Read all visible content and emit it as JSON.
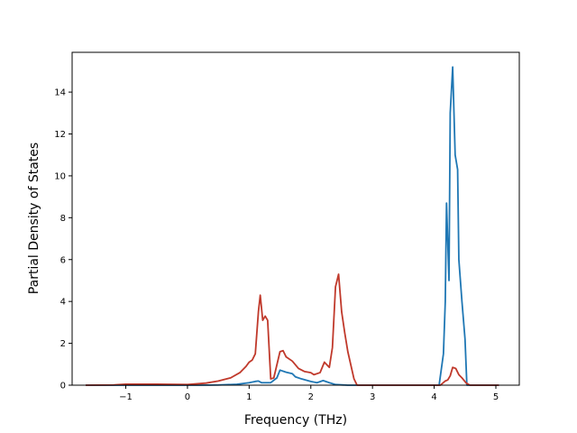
{
  "chart_data": {
    "type": "line",
    "title": "",
    "xlabel": "Frequency (THz)",
    "ylabel": "Partial Density of States",
    "xlim": [
      -1.87,
      5.38
    ],
    "ylim": [
      0,
      15.9
    ],
    "xticks": [
      -1,
      0,
      1,
      2,
      3,
      4,
      5
    ],
    "yticks": [
      0,
      2,
      4,
      6,
      8,
      10,
      12,
      14
    ],
    "grid": false,
    "legend": "none",
    "series": [
      {
        "color": "#1f77b4",
        "points": [
          [
            -1.65,
            0
          ],
          [
            0.2,
            0
          ],
          [
            0.5,
            0.01
          ],
          [
            0.8,
            0.04
          ],
          [
            1.0,
            0.12
          ],
          [
            1.1,
            0.18
          ],
          [
            1.15,
            0.2
          ],
          [
            1.2,
            0.12
          ],
          [
            1.35,
            0.12
          ],
          [
            1.45,
            0.35
          ],
          [
            1.5,
            0.72
          ],
          [
            1.6,
            0.62
          ],
          [
            1.7,
            0.55
          ],
          [
            1.75,
            0.4
          ],
          [
            1.85,
            0.3
          ],
          [
            2.0,
            0.18
          ],
          [
            2.1,
            0.12
          ],
          [
            2.2,
            0.22
          ],
          [
            2.3,
            0.12
          ],
          [
            2.4,
            0.03
          ],
          [
            2.6,
            0.0
          ],
          [
            4.08,
            0.0
          ],
          [
            4.15,
            1.5
          ],
          [
            4.18,
            4.0
          ],
          [
            4.2,
            8.7
          ],
          [
            4.24,
            5.0
          ],
          [
            4.26,
            13.0
          ],
          [
            4.3,
            15.2
          ],
          [
            4.34,
            11.0
          ],
          [
            4.38,
            10.3
          ],
          [
            4.4,
            6.0
          ],
          [
            4.45,
            4.0
          ],
          [
            4.5,
            2.2
          ],
          [
            4.53,
            0.0
          ],
          [
            5.05,
            0.0
          ]
        ]
      },
      {
        "color": "#c0392b",
        "points": [
          [
            -1.65,
            0.0
          ],
          [
            -1.2,
            0.01
          ],
          [
            -1.0,
            0.05
          ],
          [
            -0.5,
            0.05
          ],
          [
            0.0,
            0.03
          ],
          [
            0.3,
            0.1
          ],
          [
            0.5,
            0.2
          ],
          [
            0.7,
            0.35
          ],
          [
            0.85,
            0.6
          ],
          [
            0.95,
            0.9
          ],
          [
            1.0,
            1.1
          ],
          [
            1.05,
            1.2
          ],
          [
            1.1,
            1.5
          ],
          [
            1.15,
            3.5
          ],
          [
            1.18,
            4.3
          ],
          [
            1.22,
            3.1
          ],
          [
            1.26,
            3.3
          ],
          [
            1.3,
            3.1
          ],
          [
            1.35,
            0.3
          ],
          [
            1.4,
            0.35
          ],
          [
            1.5,
            1.6
          ],
          [
            1.55,
            1.65
          ],
          [
            1.6,
            1.35
          ],
          [
            1.7,
            1.15
          ],
          [
            1.8,
            0.8
          ],
          [
            1.9,
            0.65
          ],
          [
            2.0,
            0.6
          ],
          [
            2.05,
            0.5
          ],
          [
            2.15,
            0.6
          ],
          [
            2.22,
            1.1
          ],
          [
            2.3,
            0.85
          ],
          [
            2.35,
            1.8
          ],
          [
            2.4,
            4.7
          ],
          [
            2.45,
            5.3
          ],
          [
            2.5,
            3.5
          ],
          [
            2.55,
            2.5
          ],
          [
            2.6,
            1.6
          ],
          [
            2.7,
            0.3
          ],
          [
            2.75,
            0.0
          ],
          [
            4.1,
            0.0
          ],
          [
            4.18,
            0.2
          ],
          [
            4.22,
            0.25
          ],
          [
            4.26,
            0.45
          ],
          [
            4.3,
            0.85
          ],
          [
            4.35,
            0.8
          ],
          [
            4.4,
            0.5
          ],
          [
            4.45,
            0.35
          ],
          [
            4.52,
            0.1
          ],
          [
            4.58,
            0.0
          ],
          [
            5.05,
            0.0
          ]
        ]
      }
    ]
  }
}
